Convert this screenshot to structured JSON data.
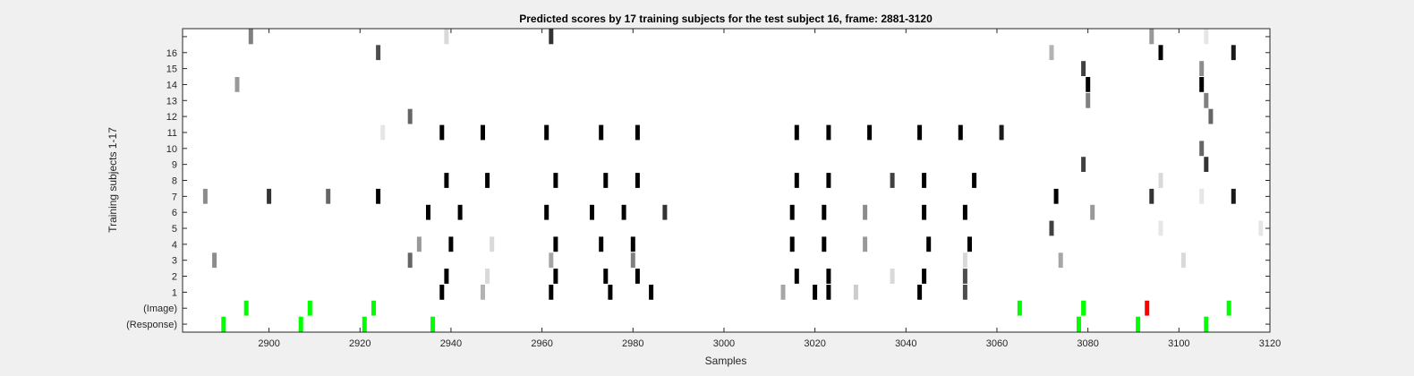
{
  "chart_data": {
    "type": "heatmap",
    "title": "Predicted scores by 17 training subjects for the test subject 16, frame: 2881-3120",
    "xlabel": "Samples",
    "ylabel": "Training subjects 1-17",
    "xlim": [
      2881,
      3120
    ],
    "x_ticks": [
      2900,
      2920,
      2940,
      2960,
      2980,
      3000,
      3020,
      3040,
      3060,
      3080,
      3100,
      3120
    ],
    "x_tick_labels": [
      "2900",
      "2920",
      "2940",
      "2960",
      "2980",
      "3000",
      "3020",
      "3040",
      "3060",
      "3080",
      "3100",
      "3120"
    ],
    "row_labels": [
      "(Response)",
      "(Image)",
      "1",
      "2",
      "3",
      "4",
      "5",
      "6",
      "7",
      "8",
      "9",
      "10",
      "11",
      "12",
      "13",
      "14",
      "15",
      "16",
      ""
    ],
    "colors": {
      "image": "#00ff00",
      "response": "#00ff00",
      "mismatch": "#ff0000",
      "background": "#ffffff"
    },
    "series": [
      {
        "name": "(Response)",
        "marks": [
          [
            2890,
            1,
            "green"
          ],
          [
            2907,
            1,
            "green"
          ],
          [
            2921,
            1,
            "green"
          ],
          [
            2936,
            1,
            "green"
          ],
          [
            3078,
            1,
            "green"
          ],
          [
            3091,
            1,
            "green"
          ],
          [
            3106,
            1,
            "green"
          ]
        ]
      },
      {
        "name": "(Image)",
        "marks": [
          [
            2895,
            1,
            "green"
          ],
          [
            2909,
            1,
            "green"
          ],
          [
            2923,
            1,
            "green"
          ],
          [
            3065,
            1,
            "green"
          ],
          [
            3079,
            1,
            "green"
          ],
          [
            3093,
            1,
            "red"
          ],
          [
            3111,
            1,
            "green"
          ]
        ]
      },
      {
        "name": "1",
        "marks": [
          [
            2938,
            1
          ],
          [
            2947,
            0.3
          ],
          [
            2962,
            1
          ],
          [
            2975,
            1
          ],
          [
            2984,
            1
          ],
          [
            3013,
            0.35
          ],
          [
            3020,
            1
          ],
          [
            3023,
            1
          ],
          [
            3029,
            0.2
          ],
          [
            3043,
            1
          ],
          [
            3053,
            0.7
          ]
        ]
      },
      {
        "name": "2",
        "marks": [
          [
            2939,
            1
          ],
          [
            2948,
            0.15
          ],
          [
            2963,
            1
          ],
          [
            2974,
            1
          ],
          [
            2981,
            1
          ],
          [
            3016,
            1
          ],
          [
            3023,
            1
          ],
          [
            3037,
            0.15
          ],
          [
            3044,
            1
          ],
          [
            3053,
            0.7
          ]
        ]
      },
      {
        "name": "3",
        "marks": [
          [
            2888,
            0.45
          ],
          [
            2931,
            0.6
          ],
          [
            2962,
            0.35
          ],
          [
            2980,
            0.5
          ],
          [
            3053,
            0.15
          ],
          [
            3074,
            0.35
          ],
          [
            3101,
            0.15
          ]
        ]
      },
      {
        "name": "4",
        "marks": [
          [
            2933,
            0.4
          ],
          [
            2940,
            1
          ],
          [
            2949,
            0.15
          ],
          [
            2963,
            1
          ],
          [
            2973,
            1
          ],
          [
            2980,
            1
          ],
          [
            3015,
            1
          ],
          [
            3022,
            1
          ],
          [
            3031,
            0.4
          ],
          [
            3045,
            1
          ],
          [
            3054,
            1
          ]
        ]
      },
      {
        "name": "5",
        "marks": [
          [
            3072,
            0.75
          ],
          [
            3096,
            0.1
          ],
          [
            3118,
            0.1
          ]
        ]
      },
      {
        "name": "6",
        "marks": [
          [
            2935,
            1
          ],
          [
            2942,
            1
          ],
          [
            2961,
            1
          ],
          [
            2971,
            1
          ],
          [
            2978,
            1
          ],
          [
            2987,
            0.8
          ],
          [
            3015,
            1
          ],
          [
            3022,
            1
          ],
          [
            3031,
            0.45
          ],
          [
            3044,
            1
          ],
          [
            3053,
            1
          ],
          [
            3081,
            0.4
          ]
        ]
      },
      {
        "name": "7",
        "marks": [
          [
            2886,
            0.45
          ],
          [
            2900,
            0.8
          ],
          [
            2913,
            0.6
          ],
          [
            2924,
            1
          ],
          [
            3073,
            1
          ],
          [
            3094,
            0.8
          ],
          [
            3105,
            0.1
          ],
          [
            3112,
            0.9
          ]
        ]
      },
      {
        "name": "8",
        "marks": [
          [
            2939,
            1
          ],
          [
            2948,
            1
          ],
          [
            2963,
            1
          ],
          [
            2974,
            1
          ],
          [
            2981,
            1
          ],
          [
            3016,
            1
          ],
          [
            3023,
            1
          ],
          [
            3037,
            0.75
          ],
          [
            3044,
            1
          ],
          [
            3055,
            1
          ],
          [
            3096,
            0.15
          ]
        ]
      },
      {
        "name": "9",
        "marks": [
          [
            3079,
            0.75
          ],
          [
            3106,
            0.8
          ]
        ]
      },
      {
        "name": "10",
        "marks": [
          [
            3105,
            0.6
          ]
        ]
      },
      {
        "name": "11",
        "marks": [
          [
            2925,
            0.1
          ],
          [
            2938,
            1
          ],
          [
            2947,
            1
          ],
          [
            2961,
            1
          ],
          [
            2973,
            1
          ],
          [
            2981,
            1
          ],
          [
            3016,
            1
          ],
          [
            3023,
            1
          ],
          [
            3032,
            1
          ],
          [
            3043,
            1
          ],
          [
            3052,
            1
          ],
          [
            3061,
            0.9
          ]
        ]
      },
      {
        "name": "12",
        "marks": [
          [
            2931,
            0.6
          ],
          [
            3107,
            0.6
          ]
        ]
      },
      {
        "name": "13",
        "marks": [
          [
            3080,
            0.5
          ],
          [
            3106,
            0.5
          ]
        ]
      },
      {
        "name": "14",
        "marks": [
          [
            2893,
            0.4
          ],
          [
            3080,
            1
          ],
          [
            3105,
            1
          ]
        ]
      },
      {
        "name": "15",
        "marks": [
          [
            3079,
            0.75
          ],
          [
            3105,
            0.45
          ]
        ]
      },
      {
        "name": "16",
        "marks": [
          [
            2924,
            0.7
          ],
          [
            3072,
            0.3
          ],
          [
            3096,
            1
          ],
          [
            3112,
            0.9
          ]
        ]
      },
      {
        "name": "",
        "marks": [
          [
            2896,
            0.5
          ],
          [
            2939,
            0.15
          ],
          [
            2962,
            0.8
          ],
          [
            3094,
            0.4
          ],
          [
            3106,
            0.1
          ]
        ]
      }
    ]
  }
}
